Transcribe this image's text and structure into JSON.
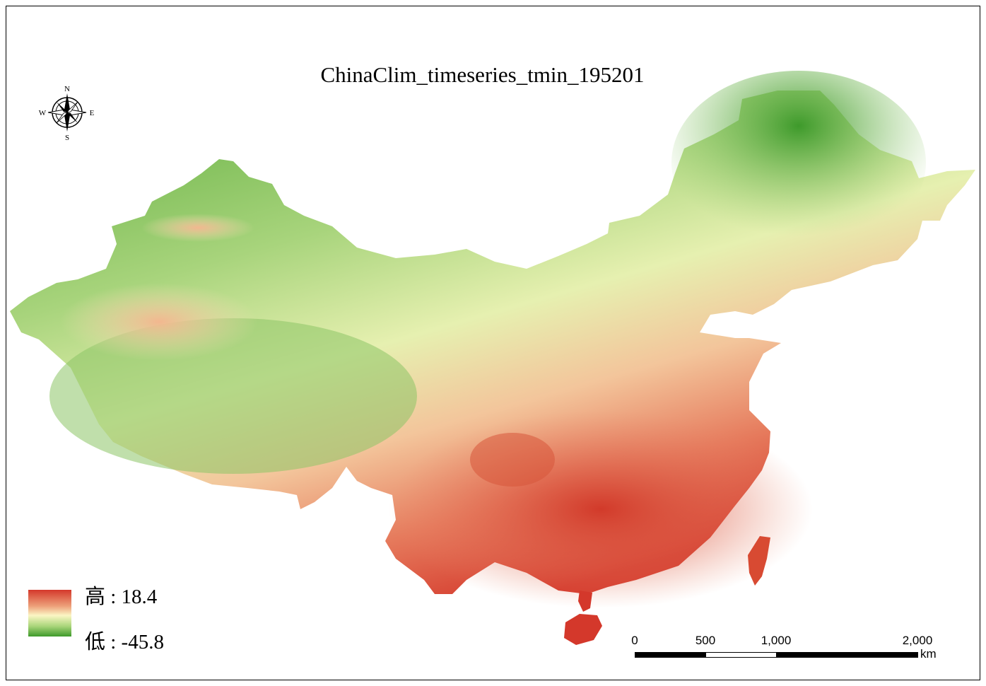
{
  "title": "ChinaClim_timeseries_tmin_195201",
  "compass": {
    "north": "N",
    "south": "S",
    "east": "E",
    "west": "W",
    "icon": "compass-rose-icon"
  },
  "legend": {
    "high_label": "高 : 18.4",
    "low_label": "低 : -45.8",
    "high_color": "#d4382b",
    "mid_color": "#fbf6c4",
    "low_color": "#3e9a2b"
  },
  "scalebar": {
    "ticks": [
      "0",
      "500",
      "1,000",
      "2,000"
    ],
    "unit": "km"
  },
  "colors": {
    "cold": "#3e9a2b",
    "cool": "#a9d57a",
    "neutral": "#fbf6c4",
    "warm": "#eda07a",
    "hot": "#d4382b"
  }
}
